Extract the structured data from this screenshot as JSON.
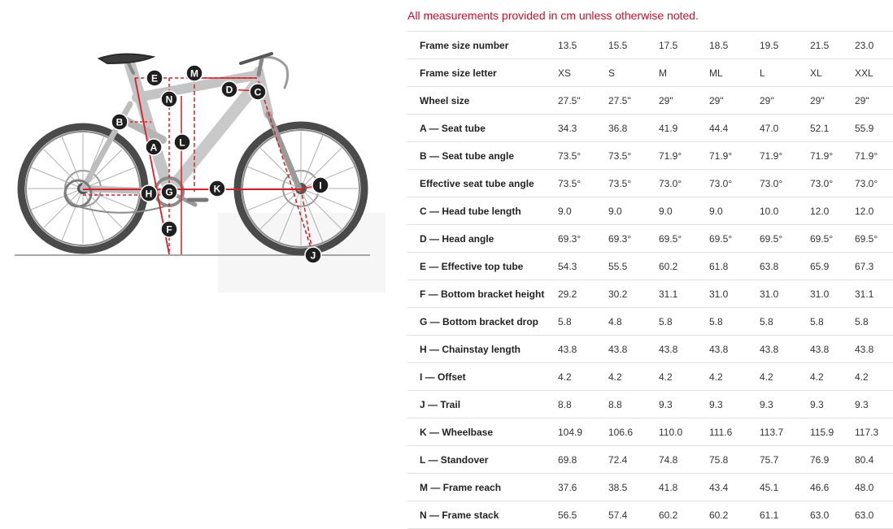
{
  "notice": "All measurements provided in cm unless otherwise noted.",
  "colors": {
    "notice": "#c8102e",
    "measure_lines": "#d4202a",
    "bike_frame": "#c4c4c4",
    "tire": "#4a4a4a",
    "marker_bg": "#1f1f1f"
  },
  "diagram": {
    "markers": [
      "A",
      "B",
      "C",
      "D",
      "E",
      "F",
      "G",
      "H",
      "I",
      "J",
      "K",
      "L",
      "M",
      "N"
    ]
  },
  "rows": [
    {
      "label": "Frame size number",
      "values": [
        "13.5",
        "15.5",
        "17.5",
        "18.5",
        "19.5",
        "21.5",
        "23.0"
      ]
    },
    {
      "label": "Frame size letter",
      "values": [
        "XS",
        "S",
        "M",
        "ML",
        "L",
        "XL",
        "XXL"
      ]
    },
    {
      "label": "Wheel size",
      "values": [
        "27.5\"",
        "27.5\"",
        "29\"",
        "29\"",
        "29\"",
        "29\"",
        "29\""
      ]
    },
    {
      "label": "A — Seat tube",
      "values": [
        "34.3",
        "36.8",
        "41.9",
        "44.4",
        "47.0",
        "52.1",
        "55.9"
      ]
    },
    {
      "label": "B — Seat tube angle",
      "values": [
        "73.5°",
        "73.5°",
        "71.9°",
        "71.9°",
        "71.9°",
        "71.9°",
        "71.9°"
      ]
    },
    {
      "label": "Effective seat tube angle",
      "values": [
        "73.5°",
        "73.5°",
        "73.0°",
        "73.0°",
        "73.0°",
        "73.0°",
        "73.0°"
      ]
    },
    {
      "label": "C — Head tube length",
      "values": [
        "9.0",
        "9.0",
        "9.0",
        "9.0",
        "10.0",
        "12.0",
        "12.0"
      ]
    },
    {
      "label": "D — Head angle",
      "values": [
        "69.3°",
        "69.3°",
        "69.5°",
        "69.5°",
        "69.5°",
        "69.5°",
        "69.5°"
      ]
    },
    {
      "label": "E — Effective top tube",
      "values": [
        "54.3",
        "55.5",
        "60.2",
        "61.8",
        "63.8",
        "65.9",
        "67.3"
      ]
    },
    {
      "label": "F — Bottom bracket height",
      "values": [
        "29.2",
        "30.2",
        "31.1",
        "31.0",
        "31.0",
        "31.0",
        "31.1"
      ]
    },
    {
      "label": "G — Bottom bracket drop",
      "values": [
        "5.8",
        "4.8",
        "5.8",
        "5.8",
        "5.8",
        "5.8",
        "5.8"
      ]
    },
    {
      "label": "H — Chainstay length",
      "values": [
        "43.8",
        "43.8",
        "43.8",
        "43.8",
        "43.8",
        "43.8",
        "43.8"
      ]
    },
    {
      "label": "I — Offset",
      "values": [
        "4.2",
        "4.2",
        "4.2",
        "4.2",
        "4.2",
        "4.2",
        "4.2"
      ]
    },
    {
      "label": "J — Trail",
      "values": [
        "8.8",
        "8.8",
        "9.3",
        "9.3",
        "9.3",
        "9.3",
        "9.3"
      ]
    },
    {
      "label": "K — Wheelbase",
      "values": [
        "104.9",
        "106.6",
        "110.0",
        "111.6",
        "113.7",
        "115.9",
        "117.3"
      ]
    },
    {
      "label": "L — Standover",
      "values": [
        "69.8",
        "72.4",
        "74.8",
        "75.8",
        "75.7",
        "76.9",
        "80.4"
      ]
    },
    {
      "label": "M — Frame reach",
      "values": [
        "37.6",
        "38.5",
        "41.8",
        "43.4",
        "45.1",
        "46.6",
        "48.0"
      ]
    },
    {
      "label": "N — Frame stack",
      "values": [
        "56.5",
        "57.4",
        "60.2",
        "60.2",
        "61.1",
        "63.0",
        "63.0"
      ]
    }
  ]
}
